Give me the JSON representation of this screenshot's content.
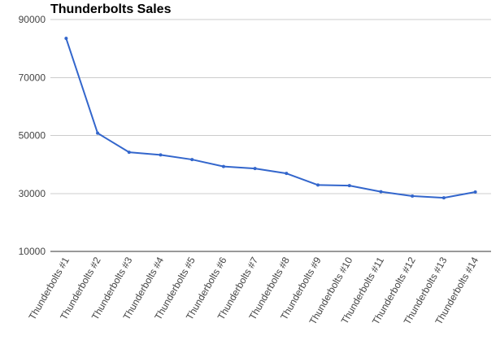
{
  "chart_data": {
    "type": "line",
    "title": "Thunderbolts Sales",
    "xlabel": "",
    "ylabel": "",
    "categories": [
      "Thunderbolts #1",
      "Thunderbolts #2",
      "Thunderbolts #3",
      "Thunderbolts #4",
      "Thunderbolts #5",
      "Thunderbolts #6",
      "Thunderbolts #7",
      "Thunderbolts #8",
      "Thunderbolts #9",
      "Thunderbolts #10",
      "Thunderbolts #11",
      "Thunderbolts #12",
      "Thunderbolts #13",
      "Thunderbolts #14"
    ],
    "series": [
      {
        "values": [
          83500,
          50800,
          44200,
          43300,
          41700,
          39300,
          38600,
          36900,
          32900,
          32700,
          30600,
          29100,
          28500,
          30500
        ]
      }
    ],
    "ylim": [
      10000,
      90000
    ],
    "yticks": [
      10000,
      30000,
      50000,
      70000,
      90000
    ],
    "ytick_labels": [
      "10000",
      "30000",
      "50000",
      "70000",
      "90000"
    ],
    "grid": true,
    "legend": "none",
    "colors": {
      "line": "#3366cc",
      "grid": "#cccccc",
      "axis": "#333333"
    }
  }
}
